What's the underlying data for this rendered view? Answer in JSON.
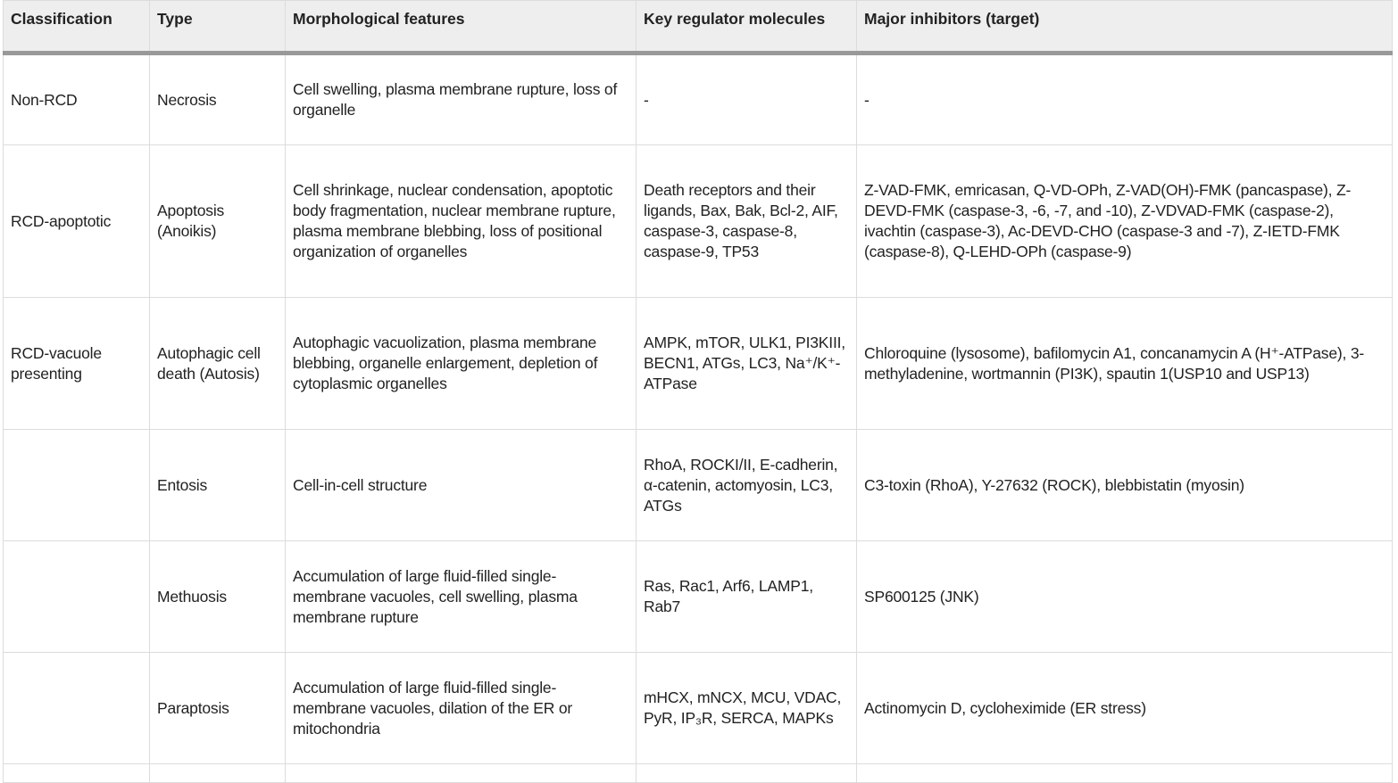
{
  "headers": [
    "Classification",
    "Type",
    "Morphological features",
    "Key regulator molecules",
    "Major inhibitors (target)"
  ],
  "rows": [
    {
      "classification": "Non-RCD",
      "type": "Necrosis",
      "features": "Cell swelling, plasma membrane rupture, loss of organelle",
      "regulators": "-",
      "inhibitors": "-"
    },
    {
      "classification": "RCD-apoptotic",
      "type": "Apoptosis (Anoikis)",
      "features": "Cell shrinkage, nuclear condensation, apoptotic body fragmentation, nuclear membrane rupture, plasma membrane blebbing, loss of positional organization of organelles",
      "regulators": "Death receptors and their ligands, Bax, Bak, Bcl-2, AIF, caspase-3, caspase-8, caspase-9, TP53",
      "inhibitors": "Z-VAD-FMK, emricasan, Q-VD-OPh, Z-VAD(OH)-FMK (pancaspase), Z-DEVD-FMK (caspase-3, -6, -7, and -10), Z-VDVAD-FMK (caspase-2), ivachtin (caspase-3), Ac-DEVD-CHO (caspase-3 and -7), Z-IETD-FMK (caspase-8), Q-LEHD-OPh (caspase-9)"
    },
    {
      "classification": "RCD-vacuole presenting",
      "type": "Autophagic cell death (Autosis)",
      "features": "Autophagic vacuolization, plasma membrane blebbing, organelle enlargement, depletion of cytoplasmic organelles",
      "regulators": "AMPK, mTOR, ULK1, PI3KIII, BECN1, ATGs, LC3, Na⁺/K⁺-ATPase",
      "inhibitors": "Chloroquine (lysosome), bafilomycin A1, concanamycin A (H⁺-ATPase), 3-methyladenine, wortmannin (PI3K), spautin 1(USP10 and USP13)"
    },
    {
      "classification": "",
      "type": "Entosis",
      "features": "Cell-in-cell structure",
      "regulators": "RhoA, ROCKI/II, E-cadherin, α-catenin, actomyosin, LC3, ATGs",
      "inhibitors": "C3-toxin (RhoA), Y-27632 (ROCK), blebbistatin (myosin)"
    },
    {
      "classification": "",
      "type": "Methuosis",
      "features": "Accumulation of large fluid-filled single-membrane vacuoles, cell swelling, plasma membrane rupture",
      "regulators": "Ras, Rac1, Arf6, LAMP1, Rab7",
      "inhibitors": "SP600125 (JNK)"
    },
    {
      "classification": "",
      "type": "Paraptosis",
      "features": "Accumulation of large fluid-filled single-membrane vacuoles, dilation of the ER or mitochondria",
      "regulators": "mHCX, mNCX, MCU, VDAC, PyR, IP₃R, SERCA, MAPKs",
      "inhibitors": "Actinomycin D, cycloheximide (ER stress)"
    }
  ]
}
